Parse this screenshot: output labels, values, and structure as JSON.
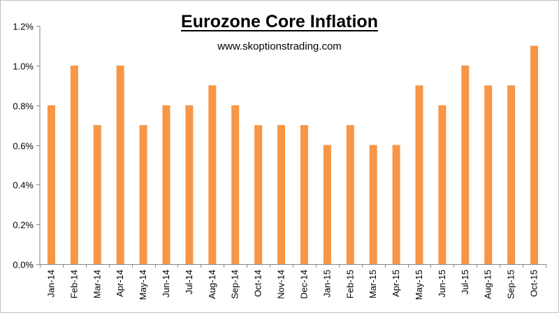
{
  "chart_data": {
    "type": "bar",
    "title": "Eurozone Core Inflation",
    "subtitle": "www.skoptionstrading.com",
    "categories": [
      "Jan-14",
      "Feb-14",
      "Mar-14",
      "Apr-14",
      "May-14",
      "Jun-14",
      "Jul-14",
      "Aug-14",
      "Sep-14",
      "Oct-14",
      "Nov-14",
      "Dec-14",
      "Jan-15",
      "Feb-15",
      "Mar-15",
      "Apr-15",
      "May-15",
      "Jun-15",
      "Jul-15",
      "Aug-15",
      "Sep-15",
      "Oct-15"
    ],
    "values": [
      0.8,
      1.0,
      0.7,
      1.0,
      0.7,
      0.8,
      0.8,
      0.9,
      0.8,
      0.7,
      0.7,
      0.7,
      0.6,
      0.7,
      0.6,
      0.6,
      0.9,
      0.8,
      1.0,
      0.9,
      0.9,
      1.1
    ],
    "ylim": [
      0,
      1.2
    ],
    "yticks": [
      "0.0%",
      "0.2%",
      "0.4%",
      "0.6%",
      "0.8%",
      "1.0%",
      "1.2%"
    ],
    "ytick_values": [
      0,
      0.2,
      0.4,
      0.6,
      0.8,
      1.0,
      1.2
    ],
    "xlabel": "",
    "ylabel": "",
    "grid": false,
    "legend": "none",
    "bar_color": "#f79646",
    "axis_color": "#868686"
  }
}
